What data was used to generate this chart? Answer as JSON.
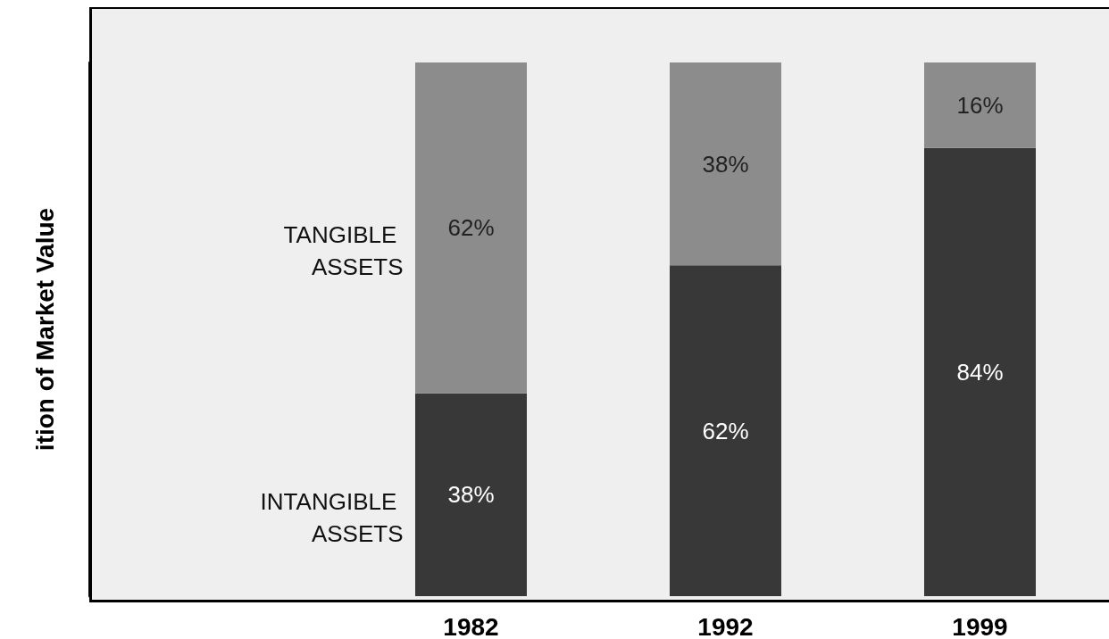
{
  "chart_data": {
    "type": "bar",
    "stacked": true,
    "annotations": [
      "ition of Market Value"
    ],
    "categories": [
      "1982",
      "1992",
      "1999"
    ],
    "ylim": [
      0,
      100
    ],
    "grid": false,
    "legend": false,
    "series": [
      {
        "name": "INTANGIBLE ASSETS",
        "color": "#383838",
        "values": [
          38,
          62,
          84
        ],
        "value_labels": [
          "38%",
          "62%",
          "84%"
        ]
      },
      {
        "name": "TANGIBLE ASSETS",
        "color": "#8c8c8c",
        "values": [
          62,
          38,
          16
        ],
        "value_labels": [
          "62%",
          "38%",
          "16%"
        ]
      }
    ]
  }
}
